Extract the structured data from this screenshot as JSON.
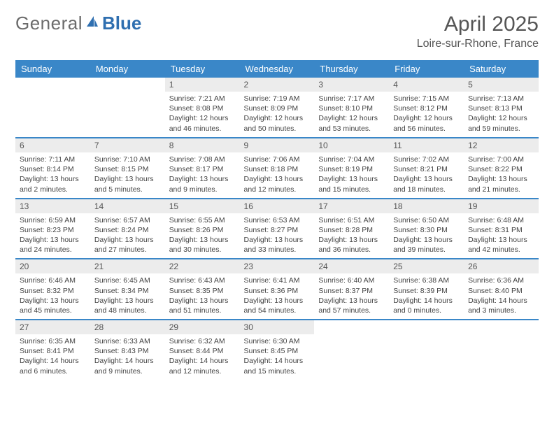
{
  "logo": {
    "part1": "General",
    "part2": "Blue"
  },
  "title": "April 2025",
  "location": "Loire-sur-Rhone, France",
  "colors": {
    "header_bg": "#3a87c8",
    "header_text": "#ffffff",
    "daynum_bg": "#ececec",
    "row_border": "#3a87c8",
    "logo_grey": "#6b6b6b",
    "logo_blue": "#2f6fb0",
    "body_text": "#444444"
  },
  "weekdays": [
    "Sunday",
    "Monday",
    "Tuesday",
    "Wednesday",
    "Thursday",
    "Friday",
    "Saturday"
  ],
  "weeks": [
    [
      null,
      null,
      {
        "n": "1",
        "sunrise": "Sunrise: 7:21 AM",
        "sunset": "Sunset: 8:08 PM",
        "day1": "Daylight: 12 hours",
        "day2": "and 46 minutes."
      },
      {
        "n": "2",
        "sunrise": "Sunrise: 7:19 AM",
        "sunset": "Sunset: 8:09 PM",
        "day1": "Daylight: 12 hours",
        "day2": "and 50 minutes."
      },
      {
        "n": "3",
        "sunrise": "Sunrise: 7:17 AM",
        "sunset": "Sunset: 8:10 PM",
        "day1": "Daylight: 12 hours",
        "day2": "and 53 minutes."
      },
      {
        "n": "4",
        "sunrise": "Sunrise: 7:15 AM",
        "sunset": "Sunset: 8:12 PM",
        "day1": "Daylight: 12 hours",
        "day2": "and 56 minutes."
      },
      {
        "n": "5",
        "sunrise": "Sunrise: 7:13 AM",
        "sunset": "Sunset: 8:13 PM",
        "day1": "Daylight: 12 hours",
        "day2": "and 59 minutes."
      }
    ],
    [
      {
        "n": "6",
        "sunrise": "Sunrise: 7:11 AM",
        "sunset": "Sunset: 8:14 PM",
        "day1": "Daylight: 13 hours",
        "day2": "and 2 minutes."
      },
      {
        "n": "7",
        "sunrise": "Sunrise: 7:10 AM",
        "sunset": "Sunset: 8:15 PM",
        "day1": "Daylight: 13 hours",
        "day2": "and 5 minutes."
      },
      {
        "n": "8",
        "sunrise": "Sunrise: 7:08 AM",
        "sunset": "Sunset: 8:17 PM",
        "day1": "Daylight: 13 hours",
        "day2": "and 9 minutes."
      },
      {
        "n": "9",
        "sunrise": "Sunrise: 7:06 AM",
        "sunset": "Sunset: 8:18 PM",
        "day1": "Daylight: 13 hours",
        "day2": "and 12 minutes."
      },
      {
        "n": "10",
        "sunrise": "Sunrise: 7:04 AM",
        "sunset": "Sunset: 8:19 PM",
        "day1": "Daylight: 13 hours",
        "day2": "and 15 minutes."
      },
      {
        "n": "11",
        "sunrise": "Sunrise: 7:02 AM",
        "sunset": "Sunset: 8:21 PM",
        "day1": "Daylight: 13 hours",
        "day2": "and 18 minutes."
      },
      {
        "n": "12",
        "sunrise": "Sunrise: 7:00 AM",
        "sunset": "Sunset: 8:22 PM",
        "day1": "Daylight: 13 hours",
        "day2": "and 21 minutes."
      }
    ],
    [
      {
        "n": "13",
        "sunrise": "Sunrise: 6:59 AM",
        "sunset": "Sunset: 8:23 PM",
        "day1": "Daylight: 13 hours",
        "day2": "and 24 minutes."
      },
      {
        "n": "14",
        "sunrise": "Sunrise: 6:57 AM",
        "sunset": "Sunset: 8:24 PM",
        "day1": "Daylight: 13 hours",
        "day2": "and 27 minutes."
      },
      {
        "n": "15",
        "sunrise": "Sunrise: 6:55 AM",
        "sunset": "Sunset: 8:26 PM",
        "day1": "Daylight: 13 hours",
        "day2": "and 30 minutes."
      },
      {
        "n": "16",
        "sunrise": "Sunrise: 6:53 AM",
        "sunset": "Sunset: 8:27 PM",
        "day1": "Daylight: 13 hours",
        "day2": "and 33 minutes."
      },
      {
        "n": "17",
        "sunrise": "Sunrise: 6:51 AM",
        "sunset": "Sunset: 8:28 PM",
        "day1": "Daylight: 13 hours",
        "day2": "and 36 minutes."
      },
      {
        "n": "18",
        "sunrise": "Sunrise: 6:50 AM",
        "sunset": "Sunset: 8:30 PM",
        "day1": "Daylight: 13 hours",
        "day2": "and 39 minutes."
      },
      {
        "n": "19",
        "sunrise": "Sunrise: 6:48 AM",
        "sunset": "Sunset: 8:31 PM",
        "day1": "Daylight: 13 hours",
        "day2": "and 42 minutes."
      }
    ],
    [
      {
        "n": "20",
        "sunrise": "Sunrise: 6:46 AM",
        "sunset": "Sunset: 8:32 PM",
        "day1": "Daylight: 13 hours",
        "day2": "and 45 minutes."
      },
      {
        "n": "21",
        "sunrise": "Sunrise: 6:45 AM",
        "sunset": "Sunset: 8:34 PM",
        "day1": "Daylight: 13 hours",
        "day2": "and 48 minutes."
      },
      {
        "n": "22",
        "sunrise": "Sunrise: 6:43 AM",
        "sunset": "Sunset: 8:35 PM",
        "day1": "Daylight: 13 hours",
        "day2": "and 51 minutes."
      },
      {
        "n": "23",
        "sunrise": "Sunrise: 6:41 AM",
        "sunset": "Sunset: 8:36 PM",
        "day1": "Daylight: 13 hours",
        "day2": "and 54 minutes."
      },
      {
        "n": "24",
        "sunrise": "Sunrise: 6:40 AM",
        "sunset": "Sunset: 8:37 PM",
        "day1": "Daylight: 13 hours",
        "day2": "and 57 minutes."
      },
      {
        "n": "25",
        "sunrise": "Sunrise: 6:38 AM",
        "sunset": "Sunset: 8:39 PM",
        "day1": "Daylight: 14 hours",
        "day2": "and 0 minutes."
      },
      {
        "n": "26",
        "sunrise": "Sunrise: 6:36 AM",
        "sunset": "Sunset: 8:40 PM",
        "day1": "Daylight: 14 hours",
        "day2": "and 3 minutes."
      }
    ],
    [
      {
        "n": "27",
        "sunrise": "Sunrise: 6:35 AM",
        "sunset": "Sunset: 8:41 PM",
        "day1": "Daylight: 14 hours",
        "day2": "and 6 minutes."
      },
      {
        "n": "28",
        "sunrise": "Sunrise: 6:33 AM",
        "sunset": "Sunset: 8:43 PM",
        "day1": "Daylight: 14 hours",
        "day2": "and 9 minutes."
      },
      {
        "n": "29",
        "sunrise": "Sunrise: 6:32 AM",
        "sunset": "Sunset: 8:44 PM",
        "day1": "Daylight: 14 hours",
        "day2": "and 12 minutes."
      },
      {
        "n": "30",
        "sunrise": "Sunrise: 6:30 AM",
        "sunset": "Sunset: 8:45 PM",
        "day1": "Daylight: 14 hours",
        "day2": "and 15 minutes."
      },
      null,
      null,
      null
    ]
  ]
}
